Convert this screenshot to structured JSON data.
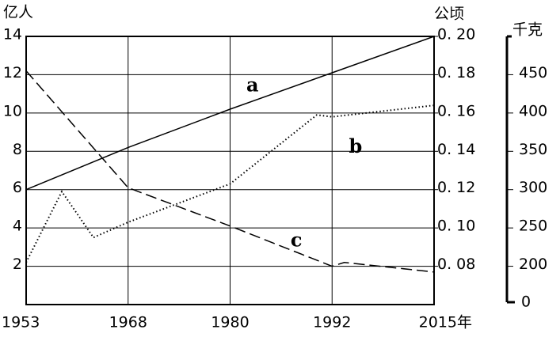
{
  "chart_data": {
    "type": "line",
    "y_axis_label": "亿人",
    "y2_axis_label": "公顷",
    "y3_axis_label": "千克",
    "xlim": [
      0,
      4
    ],
    "xticks": [
      {
        "value": 0,
        "label": "1953"
      },
      {
        "value": 1,
        "label": "1968"
      },
      {
        "value": 2,
        "label": "1980"
      },
      {
        "value": 3,
        "label": "1992"
      },
      {
        "value": 4,
        "label": "2015年"
      }
    ],
    "ylim": [
      0,
      14
    ],
    "yticks": [
      2,
      4,
      6,
      8,
      10,
      12,
      14
    ],
    "y2lim": [
      0.06,
      0.2
    ],
    "y2ticks": [
      {
        "value": 0.08,
        "label": "0. 08"
      },
      {
        "value": 0.1,
        "label": "0. 10"
      },
      {
        "value": 0.12,
        "label": "0. 12"
      },
      {
        "value": 0.14,
        "label": "0. 14"
      },
      {
        "value": 0.16,
        "label": "0. 16"
      },
      {
        "value": 0.18,
        "label": "0. 18"
      },
      {
        "value": 0.2,
        "label": "0. 20"
      }
    ],
    "y3lim": [
      150,
      500
    ],
    "y3ticks": [
      200,
      250,
      300,
      350,
      400,
      450
    ],
    "y3_axis_break_label": "0",
    "grid": true,
    "series": [
      {
        "name": "a",
        "color": "#000",
        "style": "solid",
        "x": [
          0,
          1,
          2,
          3,
          4
        ],
        "values": [
          6,
          8.2,
          10.2,
          12.1,
          14
        ]
      },
      {
        "name": "b",
        "color": "#000",
        "style": "dotted",
        "x": [
          0,
          0.35,
          0.66,
          1,
          2,
          2.85,
          3,
          4
        ],
        "values": [
          2.2,
          5.9,
          3.5,
          4.3,
          6.3,
          9.9,
          9.8,
          10.4
        ]
      },
      {
        "name": "c",
        "color": "#000",
        "style": "dashed",
        "x": [
          0,
          1,
          2,
          3,
          3.12,
          4
        ],
        "values": [
          12.2,
          6.1,
          4.1,
          2.0,
          2.2,
          1.7
        ]
      }
    ]
  }
}
